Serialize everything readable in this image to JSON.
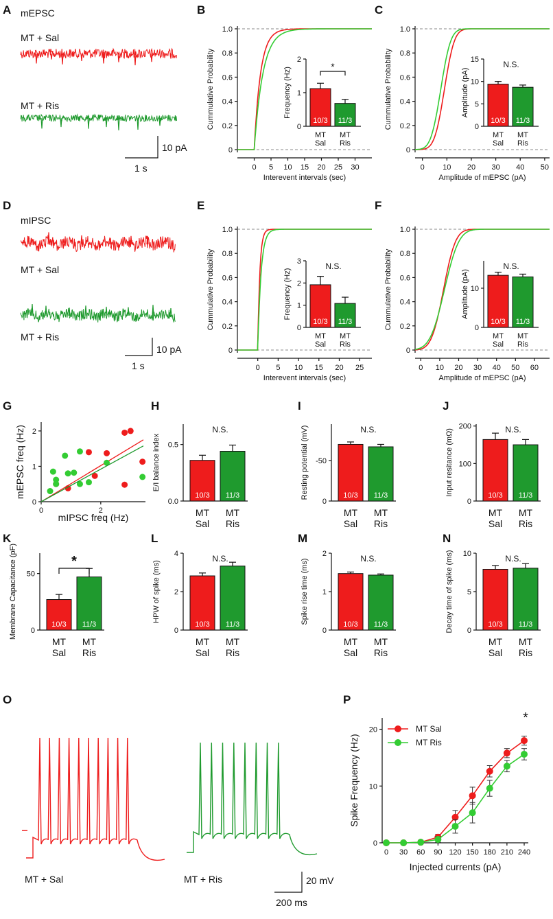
{
  "colors": {
    "sal": "#ee1c1c",
    "ris": "#1f9a2e",
    "risLight": "#33cc33",
    "axis": "#111111",
    "dash": "#888888"
  },
  "panel_letters": [
    "A",
    "B",
    "C",
    "D",
    "E",
    "F",
    "G",
    "H",
    "I",
    "J",
    "K",
    "L",
    "M",
    "N",
    "O",
    "P"
  ],
  "trace_text": {
    "A": {
      "title": "mEPSC",
      "sal": "MT + Sal",
      "ris": "MT + Ris",
      "time": "1 s",
      "amp": "10 pA"
    },
    "D": {
      "title": "mIPSC",
      "sal": "MT + Sal",
      "ris": "MT + Ris",
      "time": "1 s",
      "amp": "10 pA"
    },
    "O": {
      "sal": "MT + Sal",
      "ris": "MT + Ris",
      "time": "200 ms",
      "amp": "20 mV"
    }
  },
  "chart_data": [
    {
      "id": "B",
      "type": "line",
      "title": "",
      "ylabel": "Cummulative Probability",
      "xlabel": "Interevent intervals (sec)",
      "xticks": [
        "0",
        "5",
        "10",
        "15",
        "20",
        "25",
        "30"
      ],
      "xlim": [
        -5,
        35
      ],
      "yticks": [
        "0",
        "0.2",
        "0.4",
        "0.6",
        "0.8",
        "1.0"
      ],
      "series": [
        {
          "name": "MT Sal",
          "scale": 1.9
        },
        {
          "name": "MT Ris",
          "scale": 2.6
        }
      ],
      "inset": {
        "type": "bar",
        "ylabel": "Frequency (Hz)",
        "yticks": [
          "0",
          "1",
          "2"
        ],
        "ylim": [
          0,
          2
        ],
        "categories": [
          "MT Sal",
          "MT Ris"
        ],
        "values": [
          1.12,
          0.68
        ],
        "errors": [
          0.16,
          0.12
        ],
        "n": [
          "10/3",
          "11/3"
        ],
        "sig": "*"
      }
    },
    {
      "id": "C",
      "type": "line",
      "title": "",
      "ylabel": "Cummulative Probability",
      "xlabel": "Amplitude of mEPSC (pA)",
      "xticks": [
        "0",
        "10",
        "20",
        "30",
        "40",
        "50"
      ],
      "xlim": [
        -3,
        52
      ],
      "yticks": [
        "0",
        "0.2",
        "0.4",
        "0.6",
        "0.8",
        "1.0"
      ],
      "series": [
        {
          "name": "MT Sal",
          "mu": 9,
          "s": 3.2
        },
        {
          "name": "MT Ris",
          "mu": 7.5,
          "s": 3.2
        }
      ],
      "inset": {
        "type": "bar",
        "ylabel": "Amplitude (pA)",
        "yticks": [
          "0",
          "5",
          "10",
          "15"
        ],
        "ylim": [
          0,
          15
        ],
        "categories": [
          "MT Sal",
          "MT Ris"
        ],
        "values": [
          9.4,
          8.7
        ],
        "errors": [
          0.6,
          0.5
        ],
        "n": [
          "10/3",
          "11/3"
        ],
        "sig": "N.S."
      }
    },
    {
      "id": "E",
      "type": "line",
      "title": "",
      "ylabel": "Cummulative Probability",
      "xlabel": "Interevent intervals (sec)",
      "xticks": [
        "0",
        "5",
        "10",
        "15",
        "20",
        "25"
      ],
      "xlim": [
        -5,
        28
      ],
      "yticks": [
        "0",
        "0.2",
        "0.4",
        "0.6",
        "0.8",
        "1.0"
      ],
      "series": [
        {
          "name": "MT Sal",
          "scale": 0.5
        },
        {
          "name": "MT Ris",
          "scale": 0.8
        }
      ],
      "inset": {
        "type": "bar",
        "ylabel": "Frequency (Hz)",
        "yticks": [
          "0",
          "1",
          "2",
          "3"
        ],
        "ylim": [
          0,
          3
        ],
        "categories": [
          "MT Sal",
          "MT Ris"
        ],
        "values": [
          1.92,
          1.08
        ],
        "errors": [
          0.38,
          0.28
        ],
        "n": [
          "10/3",
          "11/3"
        ],
        "sig": "N.S."
      }
    },
    {
      "id": "F",
      "type": "line",
      "title": "",
      "ylabel": "Cummulative Probability",
      "xlabel": "Amplitude of mEPSC (pA)",
      "xticks": [
        "0",
        "10",
        "20",
        "30",
        "40",
        "50",
        "60"
      ],
      "xlim": [
        -3,
        68
      ],
      "yticks": [
        "0",
        "0.2",
        "0.4",
        "0.6",
        "0.8",
        "1.0"
      ],
      "series": [
        {
          "name": "MT Sal",
          "mu": 12,
          "s": 5
        },
        {
          "name": "MT Ris",
          "mu": 12.5,
          "s": 6
        }
      ],
      "inset": {
        "type": "bar",
        "ylabel": "Amplitude (pA)",
        "yticks": [
          "0",
          "10"
        ],
        "ylim": [
          0,
          17
        ],
        "categories": [
          "MT Sal",
          "MT Ris"
        ],
        "values": [
          13.3,
          12.9
        ],
        "errors": [
          0.8,
          0.7
        ],
        "n": [
          "10/3",
          "11/3"
        ],
        "sig": "N.S."
      }
    },
    {
      "id": "G",
      "type": "scatter",
      "xlabel": "mIPSC freq (Hz)",
      "ylabel": "mEPSC freq (Hz)",
      "xticks": [
        "0",
        "2"
      ],
      "yticks": [
        "0",
        "1",
        "2"
      ],
      "xlim": [
        0,
        3.5
      ],
      "ylim": [
        0,
        2.25
      ],
      "series": [
        {
          "name": "MT Sal",
          "points": [
            [
              0.5,
              0.5
            ],
            [
              0.9,
              0.38
            ],
            [
              1.6,
              1.4
            ],
            [
              1.8,
              0.73
            ],
            [
              2.2,
              1.37
            ],
            [
              2.8,
              1.95
            ],
            [
              3.0,
              2.0
            ],
            [
              3.4,
              1.13
            ],
            [
              2.8,
              0.48
            ]
          ],
          "fit": {
            "slope": 0.51,
            "intercept": 0
          }
        },
        {
          "name": "MT Ris",
          "points": [
            [
              0.3,
              0.3
            ],
            [
              0.4,
              0.85
            ],
            [
              0.5,
              0.62
            ],
            [
              0.5,
              0.5
            ],
            [
              0.8,
              1.3
            ],
            [
              0.9,
              0.8
            ],
            [
              1.1,
              0.82
            ],
            [
              1.3,
              1.42
            ],
            [
              1.3,
              0.5
            ],
            [
              1.6,
              0.55
            ],
            [
              2.2,
              1.1
            ],
            [
              3.4,
              0.7
            ]
          ],
          "fit": {
            "slope": 0.46,
            "intercept": 0
          }
        }
      ]
    },
    {
      "id": "H",
      "type": "bar",
      "ylabel": "E/I balance index",
      "yticks": [
        "0.0",
        "0.5"
      ],
      "ylim": [
        0,
        0.68
      ],
      "categories": [
        "MT Sal",
        "MT Ris"
      ],
      "values": [
        0.36,
        0.44
      ],
      "errors": [
        0.045,
        0.055
      ],
      "n": [
        "10/3",
        "11/3"
      ],
      "sig": "N.S."
    },
    {
      "id": "I",
      "type": "bar",
      "ylabel": "Resting potential (mV)",
      "yticks": [
        "0",
        "-50"
      ],
      "ylim": [
        0,
        -95
      ],
      "categories": [
        "MT Sal",
        "MT Ris"
      ],
      "values": [
        -70,
        -67
      ],
      "errors": [
        3,
        3
      ],
      "n": [
        "10/3",
        "11/3"
      ],
      "sig": "N.S."
    },
    {
      "id": "J",
      "type": "bar",
      "ylabel": "Input resitance (mΩ)",
      "yticks": [
        "0",
        "100",
        "200"
      ],
      "ylim": [
        0,
        205
      ],
      "categories": [
        "MT Sal",
        "MT Ris"
      ],
      "values": [
        164,
        150
      ],
      "errors": [
        17,
        14
      ],
      "n": [
        "10/3",
        "11/3"
      ],
      "sig": "N.S."
    },
    {
      "id": "K",
      "type": "bar",
      "ylabel": "Membrane Capacitance (pF)",
      "yticks": [
        "0",
        "50"
      ],
      "ylim": [
        0,
        68
      ],
      "categories": [
        "MT Sal",
        "MT Ris"
      ],
      "values": [
        27,
        47
      ],
      "errors": [
        4.5,
        7.5
      ],
      "n": [
        "10/3",
        "11/3"
      ],
      "sig": "*"
    },
    {
      "id": "L",
      "type": "bar",
      "ylabel": "HPW of spike (ms)",
      "yticks": [
        "0",
        "2",
        "4"
      ],
      "ylim": [
        0,
        4
      ],
      "categories": [
        "MT Sal",
        "MT Ris"
      ],
      "values": [
        2.82,
        3.33
      ],
      "errors": [
        0.15,
        0.2
      ],
      "n": [
        "10/3",
        "11/3"
      ],
      "sig": "N.S."
    },
    {
      "id": "M",
      "type": "bar",
      "ylabel": "Spike rise time (ms)",
      "yticks": [
        "0",
        "1",
        "2"
      ],
      "ylim": [
        0,
        2
      ],
      "categories": [
        "MT Sal",
        "MT Ris"
      ],
      "values": [
        1.47,
        1.43
      ],
      "errors": [
        0.04,
        0.03
      ],
      "n": [
        "10/3",
        "11/3"
      ],
      "sig": "N.S."
    },
    {
      "id": "N",
      "type": "bar",
      "ylabel": "Decay time of spike (ms)",
      "yticks": [
        "0",
        "5",
        "10"
      ],
      "ylim": [
        0,
        10
      ],
      "categories": [
        "MT Sal",
        "MT Ris"
      ],
      "values": [
        7.9,
        8.05
      ],
      "errors": [
        0.5,
        0.6
      ],
      "n": [
        "10/3",
        "11/3"
      ],
      "sig": "N.S."
    },
    {
      "id": "P",
      "type": "line",
      "xlabel": "Injected currents (pA)",
      "ylabel": "Spike Frequency (Hz)",
      "xticks": [
        "0",
        "30",
        "60",
        "90",
        "120",
        "150",
        "180",
        "210",
        "240"
      ],
      "yticks": [
        "0",
        "10",
        "20"
      ],
      "ylim": [
        0,
        22
      ],
      "series": [
        {
          "name": "MT Sal",
          "values": [
            0,
            0,
            0.1,
            1.0,
            4.5,
            8.3,
            12.6,
            15.8,
            18.0
          ],
          "errors": [
            0,
            0,
            0.2,
            0.5,
            1.2,
            1.5,
            1.0,
            0.8,
            0.8
          ]
        },
        {
          "name": "MT Ris",
          "values": [
            0,
            0,
            0.1,
            0.6,
            2.9,
            5.3,
            9.6,
            13.5,
            15.6
          ],
          "errors": [
            0,
            0,
            0.2,
            0.5,
            1.2,
            1.8,
            1.4,
            1.0,
            1.0
          ]
        }
      ],
      "legend": [
        "MT Sal",
        "MT Ris"
      ],
      "sig": "*"
    }
  ]
}
